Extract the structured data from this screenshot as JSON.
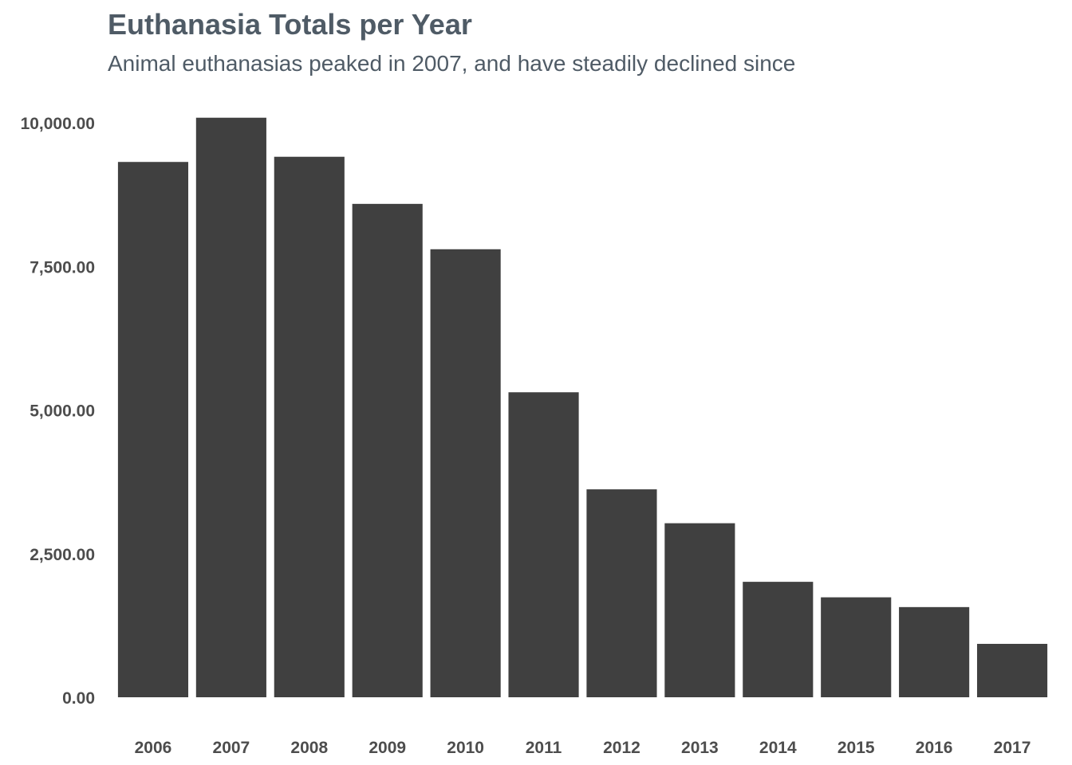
{
  "chart_data": {
    "type": "bar",
    "title": "Euthanasia Totals per Year",
    "subtitle": "Animal euthanasias peaked in 2007, and have steadily declined since",
    "xlabel": "",
    "ylabel": "",
    "categories": [
      "2006",
      "2007",
      "2008",
      "2009",
      "2010",
      "2011",
      "2012",
      "2013",
      "2014",
      "2015",
      "2016",
      "2017"
    ],
    "values": [
      9320,
      10090,
      9410,
      8590,
      7800,
      5310,
      3620,
      3030,
      2010,
      1740,
      1570,
      930
    ],
    "ylim": [
      0,
      10100
    ],
    "yticks": [
      0,
      2500,
      5000,
      7500,
      10000
    ],
    "ytick_labels": [
      "0.00",
      "2,500.00",
      "5,000.00",
      "7,500.00",
      "10,000.00"
    ],
    "grid": false,
    "bar_color": "#404040"
  }
}
